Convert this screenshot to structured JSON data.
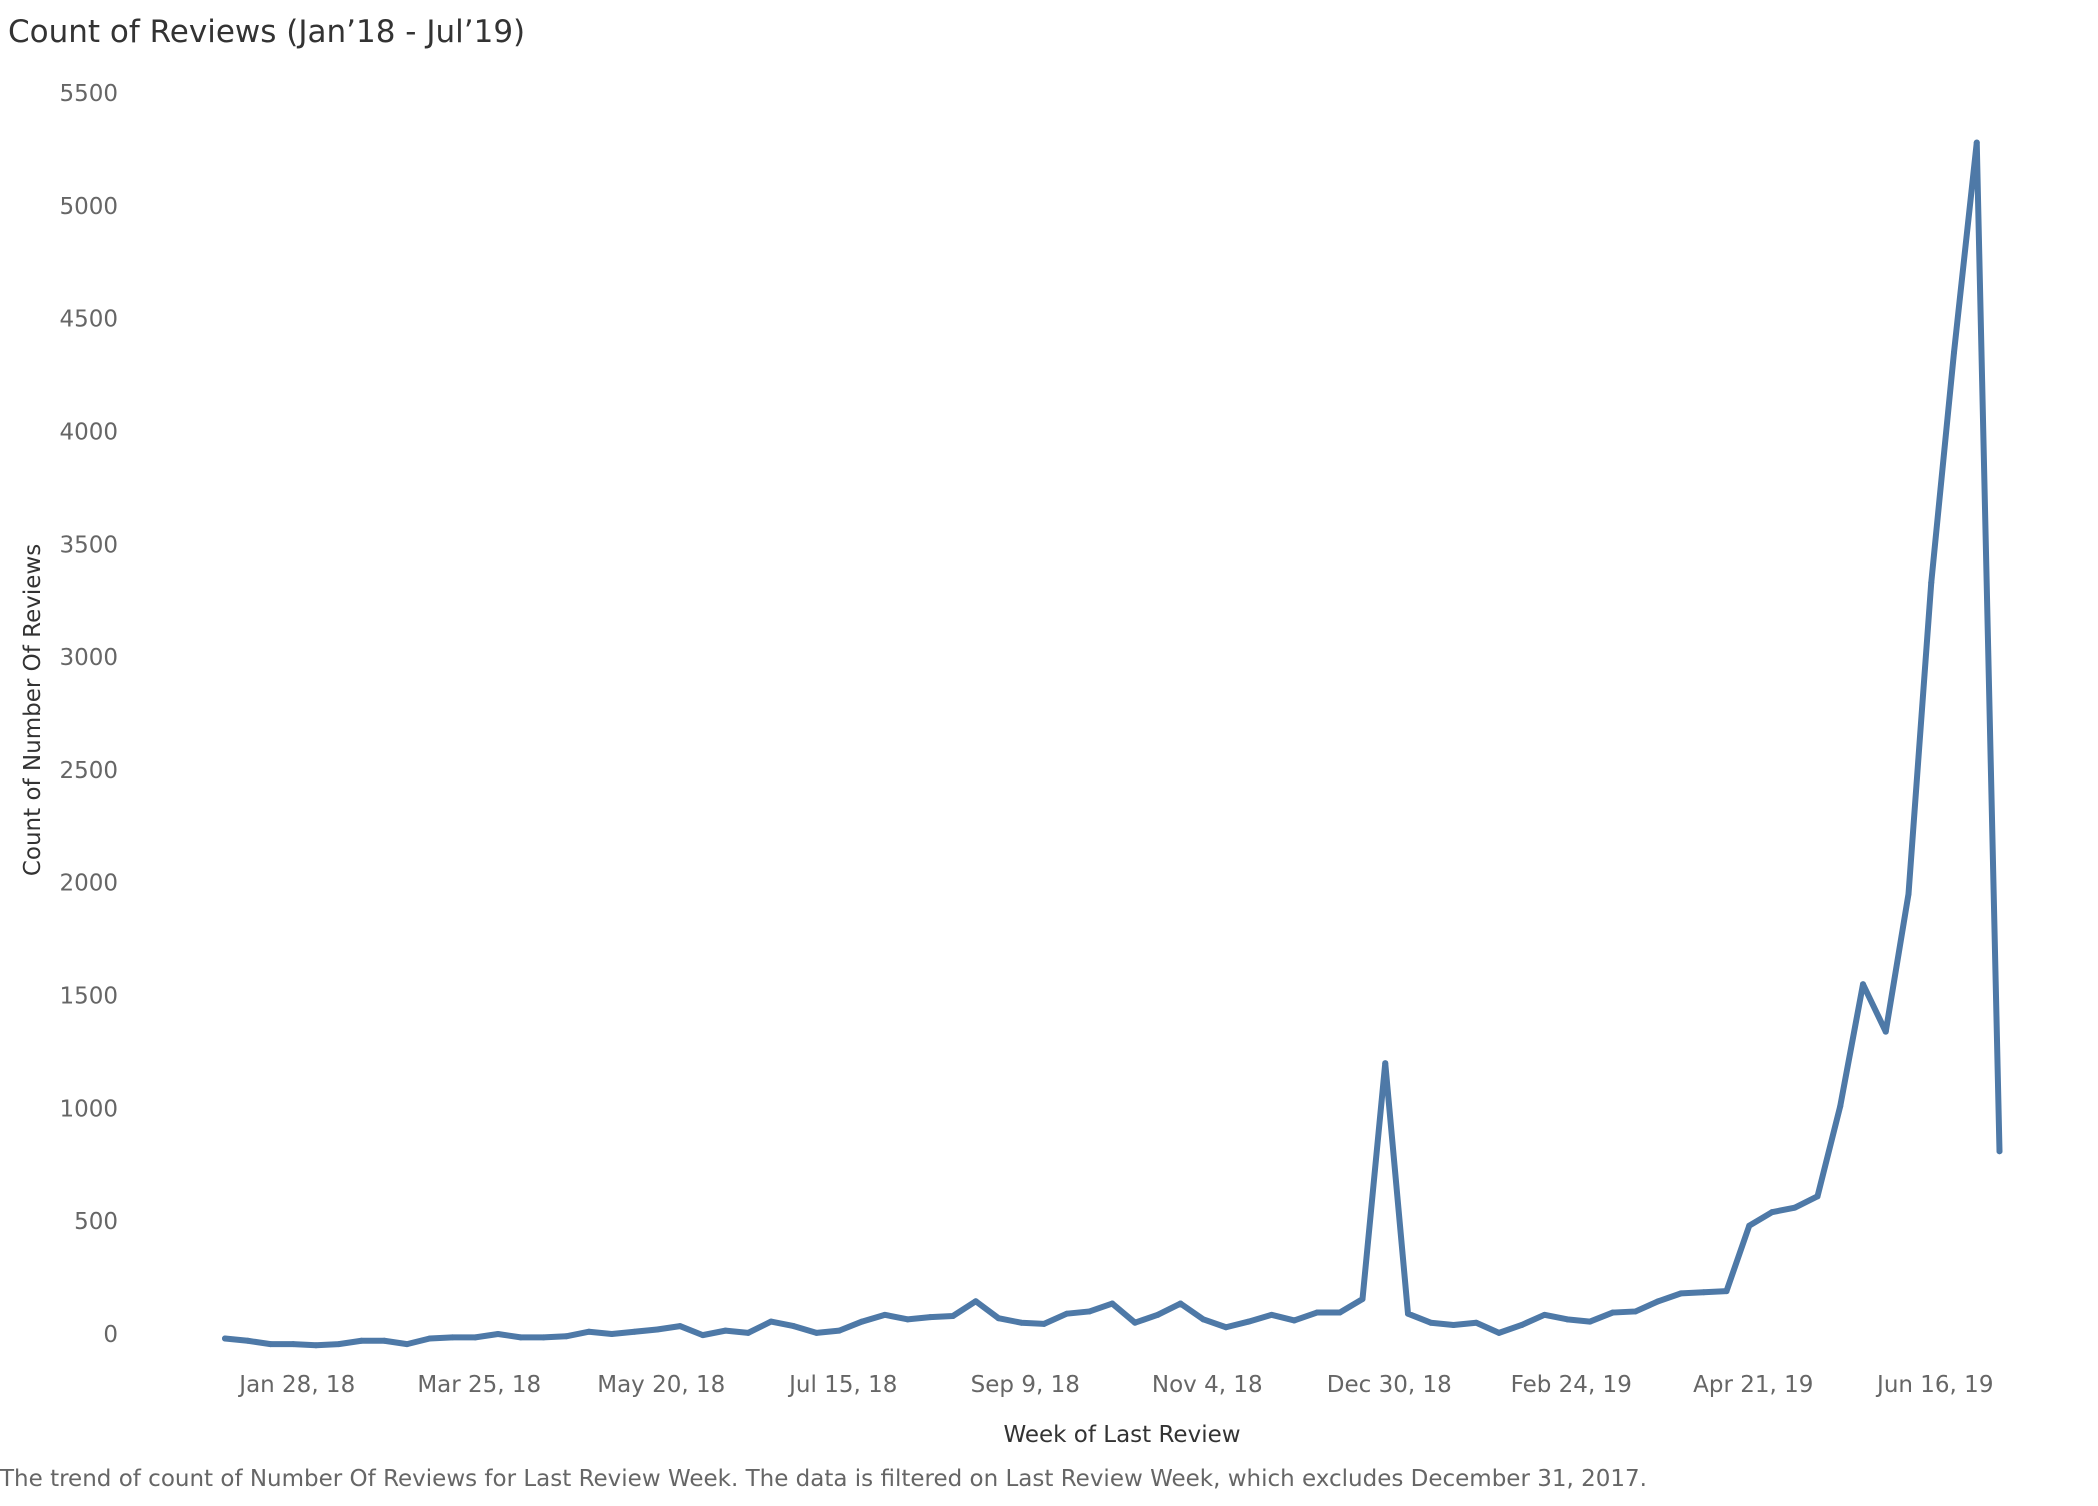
{
  "title": "Count of Reviews (Jan’18 - Jul’19)",
  "caption": "The trend of count of Number Of Reviews for Last Review Week. The data is filtered on Last Review Week, which excludes December 31, 2017.",
  "chart_data": {
    "type": "line",
    "title": "Count of Reviews (Jan’18 - Jul’19)",
    "xlabel": "Week of Last Review",
    "ylabel": "Count of Number Of Reviews",
    "ylim": [
      0,
      5500
    ],
    "yticks": [
      0,
      500,
      1000,
      1500,
      2000,
      2500,
      3000,
      3500,
      4000,
      4500,
      5000,
      5500
    ],
    "xtick_labels": [
      "Jan 28, 18",
      "Mar 25, 18",
      "May 20, 18",
      "Jul 15, 18",
      "Sep 9, 18",
      "Nov 4, 18",
      "Dec 30, 18",
      "Feb 24, 19",
      "Apr 21, 19",
      "Jun 16, 19"
    ],
    "xtick_week_index": [
      3,
      11,
      19,
      27,
      35,
      43,
      51,
      59,
      67,
      75
    ],
    "grid": false,
    "line_color": "#4e79a7",
    "x_start": "Jan 7, 18",
    "x_step_days": 7,
    "series": [
      {
        "name": "",
        "values": [
          -20,
          -30,
          -45,
          -45,
          -50,
          -45,
          -30,
          -30,
          -45,
          -20,
          -15,
          -15,
          0,
          -15,
          -15,
          -10,
          10,
          0,
          10,
          20,
          35,
          -5,
          15,
          5,
          55,
          35,
          5,
          15,
          55,
          85,
          65,
          75,
          80,
          145,
          70,
          50,
          45,
          90,
          100,
          135,
          50,
          85,
          135,
          65,
          30,
          55,
          85,
          60,
          95,
          95,
          155,
          1200,
          90,
          50,
          40,
          50,
          5,
          40,
          85,
          65,
          55,
          95,
          100,
          145,
          180,
          185,
          190,
          480,
          540,
          560,
          610,
          1010,
          1550,
          1340,
          1950,
          3330,
          4350,
          5280,
          810
        ]
      }
    ]
  }
}
